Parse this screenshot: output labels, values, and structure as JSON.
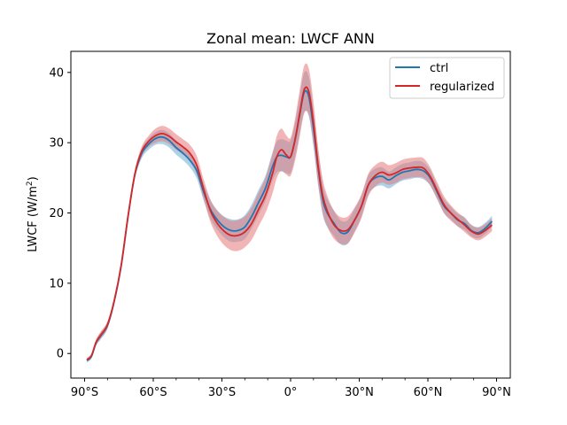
{
  "chart_data": {
    "type": "line",
    "title": "Zonal mean: LWCF ANN",
    "xlabel": "",
    "ylabel": "LWCF (W/m²)",
    "ylabel_base": "LWCF (W/m",
    "ylabel_sup": "2",
    "ylabel_tail": ")",
    "xlim": [
      -96,
      96
    ],
    "ylim": [
      -3.5,
      43
    ],
    "xticks": [
      -90,
      -60,
      -30,
      0,
      30,
      60,
      90
    ],
    "xtick_labels": [
      "90°S",
      "60°S",
      "30°S",
      "0°",
      "30°N",
      "60°N",
      "90°N"
    ],
    "yticks": [
      0,
      10,
      20,
      30,
      40
    ],
    "ytick_labels": [
      "0",
      "10",
      "20",
      "30",
      "40"
    ],
    "legend_position": "top-right",
    "series": [
      {
        "name": "ctrl",
        "color": "#1f77b4",
        "band_color": "#6baed6",
        "x": [
          -89,
          -87,
          -85,
          -83,
          -80,
          -77,
          -74,
          -71,
          -68,
          -65,
          -62,
          -59,
          -56,
          -53,
          -50,
          -47,
          -44,
          -41,
          -38,
          -35,
          -32,
          -29,
          -26,
          -23,
          -20,
          -17,
          -14,
          -11,
          -8,
          -6,
          -4,
          -2,
          0,
          2,
          4,
          6,
          8,
          10,
          12,
          14,
          16,
          19,
          22,
          25,
          28,
          31,
          34,
          37,
          40,
          43,
          46,
          49,
          52,
          55,
          58,
          61,
          64,
          67,
          70,
          73,
          76,
          79,
          82,
          85,
          88
        ],
        "y": [
          -1.0,
          -0.4,
          1.5,
          2.5,
          4.0,
          7.5,
          12.5,
          19.5,
          25.5,
          28.5,
          29.8,
          30.6,
          30.8,
          30.3,
          29.3,
          28.5,
          27.5,
          26.0,
          23.0,
          20.5,
          19.0,
          18.0,
          17.5,
          17.5,
          18.0,
          19.5,
          21.5,
          23.5,
          26.5,
          28.0,
          28.2,
          28.0,
          28.0,
          30.5,
          34.0,
          37.2,
          36.5,
          32.0,
          26.5,
          22.0,
          20.0,
          18.5,
          17.2,
          17.3,
          19.0,
          21.0,
          24.0,
          25.0,
          25.2,
          24.7,
          25.3,
          25.8,
          26.0,
          26.2,
          26.0,
          25.0,
          23.0,
          21.0,
          20.0,
          19.0,
          18.5,
          17.5,
          17.2,
          17.8,
          18.8
        ],
        "spread": [
          0.3,
          0.3,
          0.4,
          0.5,
          0.5,
          0.5,
          0.5,
          0.5,
          0.6,
          0.7,
          0.8,
          0.9,
          1.0,
          1.0,
          1.0,
          1.0,
          1.0,
          1.1,
          1.2,
          1.3,
          1.4,
          1.5,
          1.6,
          1.6,
          1.7,
          1.7,
          1.8,
          1.8,
          2.0,
          2.2,
          2.3,
          2.3,
          2.3,
          2.5,
          2.7,
          2.8,
          2.8,
          2.6,
          2.4,
          2.2,
          2.0,
          1.8,
          1.7,
          1.7,
          1.6,
          1.5,
          1.4,
          1.3,
          1.3,
          1.2,
          1.2,
          1.2,
          1.2,
          1.2,
          1.2,
          1.1,
          1.0,
          1.0,
          0.9,
          0.9,
          0.9,
          0.8,
          0.8,
          0.8,
          0.8
        ]
      },
      {
        "name": "regularized",
        "color": "#d62728",
        "band_color": "#e8797a",
        "x": [
          -89,
          -87,
          -85,
          -83,
          -80,
          -77,
          -74,
          -71,
          -68,
          -65,
          -62,
          -59,
          -56,
          -53,
          -50,
          -47,
          -44,
          -41,
          -38,
          -35,
          -32,
          -29,
          -26,
          -23,
          -20,
          -17,
          -14,
          -11,
          -8,
          -6,
          -4,
          -2,
          0,
          2,
          4,
          6,
          8,
          10,
          12,
          14,
          16,
          19,
          22,
          25,
          28,
          31,
          34,
          37,
          40,
          43,
          46,
          49,
          52,
          55,
          58,
          61,
          64,
          67,
          70,
          73,
          76,
          79,
          82,
          85,
          88
        ],
        "y": [
          -0.9,
          -0.3,
          1.6,
          2.6,
          4.1,
          7.6,
          12.6,
          19.6,
          25.6,
          28.8,
          30.2,
          31.0,
          31.3,
          30.9,
          30.1,
          29.4,
          28.5,
          26.8,
          23.4,
          20.3,
          18.5,
          17.4,
          16.8,
          16.8,
          17.3,
          18.5,
          20.5,
          22.5,
          25.5,
          28.0,
          29.0,
          28.3,
          28.0,
          30.5,
          34.2,
          37.6,
          37.2,
          32.8,
          26.8,
          22.5,
          20.3,
          18.3,
          17.5,
          17.6,
          19.0,
          21.0,
          24.0,
          25.3,
          25.8,
          25.4,
          25.7,
          26.2,
          26.4,
          26.5,
          26.4,
          25.2,
          23.2,
          21.2,
          20.0,
          19.1,
          18.3,
          17.4,
          17.0,
          17.5,
          18.3
        ],
        "spread": [
          0.3,
          0.3,
          0.4,
          0.5,
          0.5,
          0.5,
          0.5,
          0.5,
          0.6,
          0.7,
          0.8,
          1.0,
          1.1,
          1.1,
          1.1,
          1.1,
          1.2,
          1.3,
          1.4,
          1.6,
          1.8,
          2.0,
          2.1,
          2.2,
          2.2,
          2.3,
          2.4,
          2.5,
          2.8,
          3.0,
          3.0,
          2.8,
          2.7,
          3.0,
          3.3,
          3.4,
          3.3,
          3.0,
          2.7,
          2.4,
          2.2,
          2.0,
          1.9,
          1.9,
          1.8,
          1.7,
          1.6,
          1.5,
          1.5,
          1.4,
          1.4,
          1.4,
          1.4,
          1.4,
          1.4,
          1.3,
          1.2,
          1.2,
          1.1,
          1.0,
          1.0,
          0.9,
          0.9,
          0.9,
          0.9
        ]
      }
    ]
  }
}
